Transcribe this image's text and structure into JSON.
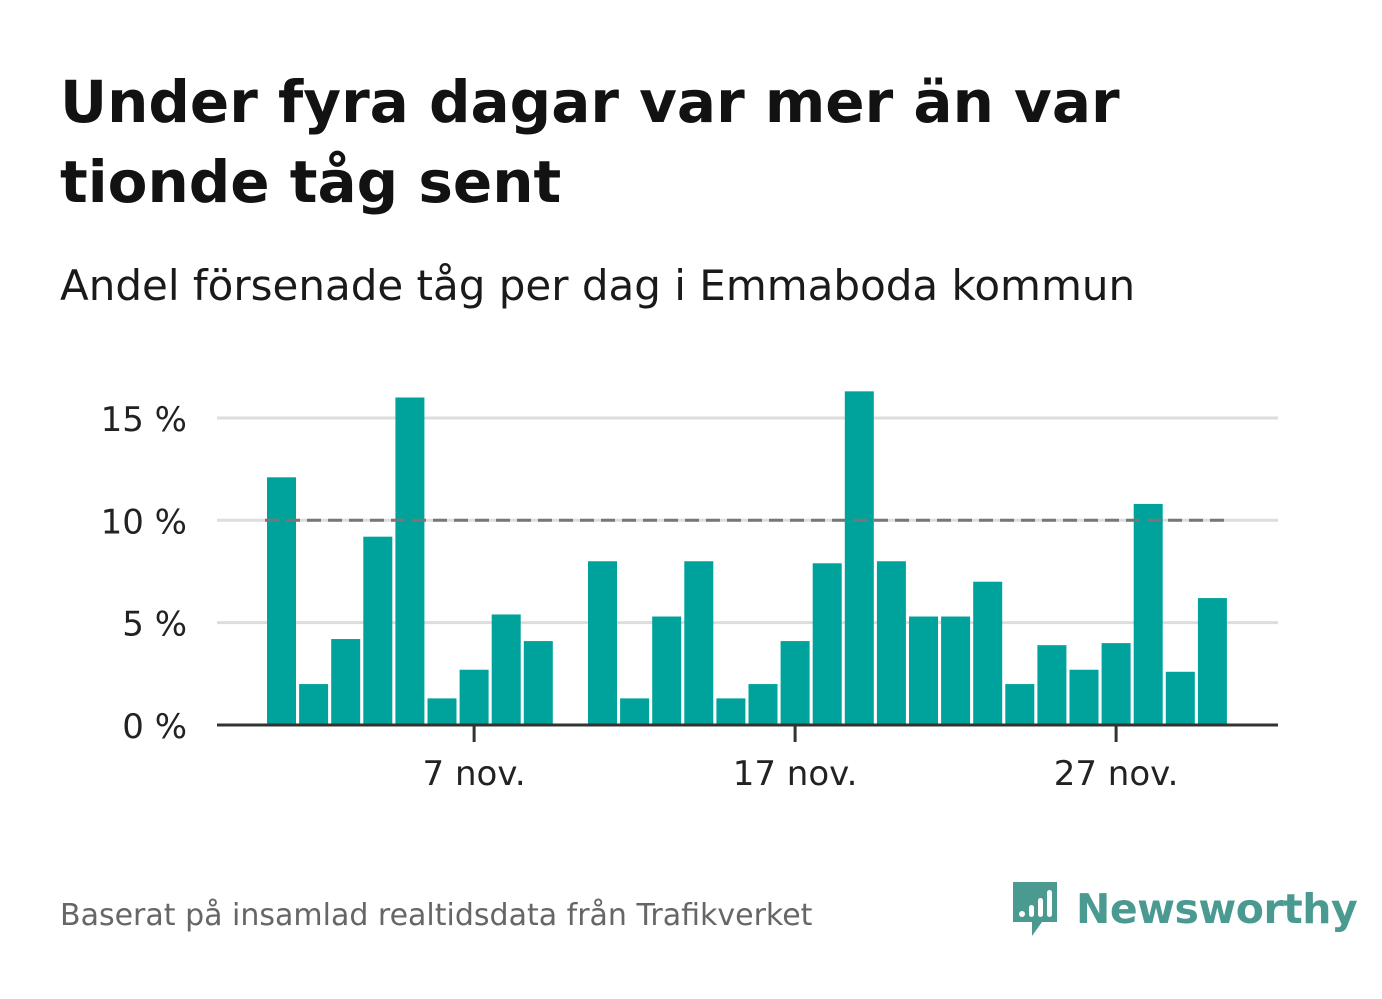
{
  "title": "Under fyra dagar var mer än var tionde tåg sent",
  "subtitle": "Andel försenade tåg per dag i Emmaboda kommun",
  "footer": "Baserat på insamlad realtidsdata från Trafikverket",
  "brand": {
    "name": "Newsworthy",
    "icon": "newsworthy-logo-icon"
  },
  "colors": {
    "bar": "#00a39b",
    "reference_line": "#777777",
    "grid": "#dddddd",
    "axis": "#333333",
    "brand": "#4a9a92"
  },
  "chart_data": {
    "type": "bar",
    "x_unit": "day",
    "categories": [
      "1 nov.",
      "2 nov.",
      "3 nov.",
      "4 nov.",
      "5 nov.",
      "6 nov.",
      "7 nov.",
      "8 nov.",
      "9 nov.",
      "10 nov.",
      "11 nov.",
      "12 nov.",
      "13 nov.",
      "14 nov.",
      "15 nov.",
      "16 nov.",
      "17 nov.",
      "18 nov.",
      "19 nov.",
      "20 nov.",
      "21 nov.",
      "22 nov.",
      "23 nov.",
      "24 nov.",
      "25 nov.",
      "26 nov.",
      "27 nov.",
      "28 nov.",
      "29 nov.",
      "30 nov."
    ],
    "values": [
      12.1,
      2.0,
      4.2,
      9.2,
      16.0,
      1.3,
      2.7,
      5.4,
      4.1,
      null,
      8.0,
      1.3,
      5.3,
      8.0,
      1.3,
      2.0,
      4.1,
      7.9,
      16.3,
      8.0,
      5.3,
      5.3,
      7.0,
      2.0,
      3.9,
      2.7,
      4.0,
      10.8,
      2.6,
      6.2
    ],
    "ylim": [
      0,
      16.5
    ],
    "yticks": [
      0,
      5,
      10,
      15
    ],
    "ytick_labels": [
      "0 %",
      "5 %",
      "10 %",
      "15 %"
    ],
    "xticks": [
      "7 nov.",
      "17 nov.",
      "27 nov."
    ],
    "reference_line": {
      "value": 10,
      "style": "dashed"
    },
    "grid": true,
    "xlabel": "",
    "ylabel": ""
  }
}
